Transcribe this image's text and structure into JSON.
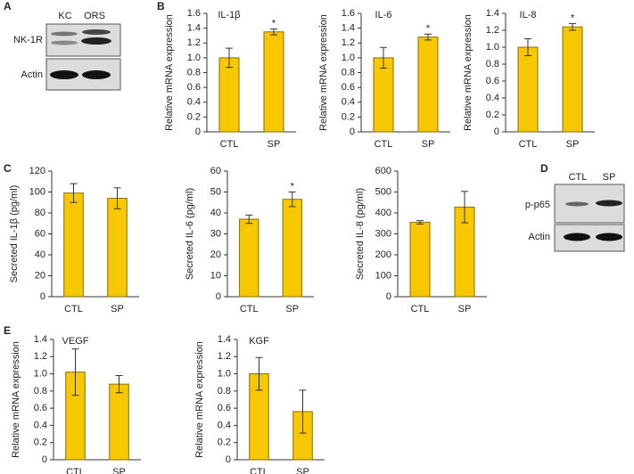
{
  "panel_labels": [
    "A",
    "B",
    "C",
    "D",
    "E"
  ],
  "blots": [
    {
      "columns": [
        "KC",
        "ORS"
      ],
      "rows": [
        "NK-1R",
        "Actin"
      ]
    },
    {
      "columns": [
        "CTL",
        "SP"
      ],
      "rows": [
        "p-p65",
        "Actin"
      ]
    }
  ],
  "chart_data": [
    {
      "type": "bar",
      "title": "IL-1β",
      "y_label": "Relative mRNA expression",
      "categories": [
        "CTL",
        "SP"
      ],
      "values": [
        1.0,
        1.35
      ],
      "errors": [
        0.13,
        0.04
      ],
      "color": "#f7c800",
      "ylim": [
        0,
        1.6
      ],
      "yticks": [
        0,
        0.2,
        0.4,
        0.6,
        0.8,
        {
          "value": 1,
          "label": "1.0"
        },
        1.2,
        1.4,
        1.6
      ],
      "annotations": [
        {
          "category": "SP",
          "text": "*"
        }
      ]
    },
    {
      "type": "bar",
      "title": "IL-6",
      "y_label": "Relative mRNA expression",
      "categories": [
        "CTL",
        "SP"
      ],
      "values": [
        1.0,
        1.28
      ],
      "errors": [
        0.14,
        0.04
      ],
      "color": "#f7c800",
      "ylim": [
        0,
        1.6
      ],
      "yticks": [
        0,
        0.2,
        0.4,
        0.6,
        0.8,
        {
          "value": 1,
          "label": "1.0"
        },
        1.2,
        1.4,
        1.6
      ],
      "annotations": [
        {
          "category": "SP",
          "text": "*"
        }
      ]
    },
    {
      "type": "bar",
      "title": "IL-8",
      "y_label": "Relative mRNA expression",
      "categories": [
        "CTL",
        "SP"
      ],
      "values": [
        1.0,
        1.24
      ],
      "errors": [
        0.1,
        0.04
      ],
      "color": "#f7c800",
      "ylim": [
        0,
        1.4
      ],
      "yticks": [
        0,
        0.2,
        0.4,
        0.6,
        0.8,
        {
          "value": 1,
          "label": "1.0"
        },
        1.2,
        1.4
      ],
      "annotations": [
        {
          "category": "SP",
          "text": "*"
        }
      ]
    },
    {
      "type": "bar",
      "y_label": "Secreted IL-1β (pg/ml)",
      "categories": [
        "CTL",
        "SP"
      ],
      "values": [
        99,
        94
      ],
      "errors": [
        9,
        10
      ],
      "color": "#f7c800",
      "ylim": [
        0,
        120
      ],
      "yticks": [
        0,
        20,
        40,
        60,
        80,
        100,
        120
      ]
    },
    {
      "type": "bar",
      "y_label": "Secreted IL-6 (pg/ml)",
      "categories": [
        "CTL",
        "SP"
      ],
      "values": [
        37,
        46.5
      ],
      "errors": [
        2,
        3.5
      ],
      "color": "#f7c800",
      "ylim": [
        0,
        60
      ],
      "yticks": [
        0,
        10,
        20,
        30,
        40,
        50,
        60
      ],
      "annotations": [
        {
          "category": "SP",
          "text": "*"
        }
      ]
    },
    {
      "type": "bar",
      "y_label": "Secreted IL-8 (pg/ml)",
      "categories": [
        "CTL",
        "SP"
      ],
      "values": [
        355,
        428
      ],
      "errors": [
        8,
        75
      ],
      "color": "#f7c800",
      "ylim": [
        0,
        600
      ],
      "yticks": [
        0,
        100,
        200,
        300,
        400,
        500,
        600
      ]
    },
    {
      "type": "bar",
      "title": "VEGF",
      "y_label": "Relative mRNA expression",
      "categories": [
        "CTL",
        "SP"
      ],
      "values": [
        1.02,
        0.88
      ],
      "errors": [
        0.27,
        0.1
      ],
      "color": "#f7c800",
      "ylim": [
        0,
        1.4
      ],
      "yticks": [
        0,
        0.2,
        0.4,
        0.6,
        0.8,
        {
          "value": 1,
          "label": "1.0"
        },
        1.2,
        1.4
      ]
    },
    {
      "type": "bar",
      "title": "KGF",
      "y_label": "Relative mRNA expression",
      "categories": [
        "CTL",
        "SP"
      ],
      "values": [
        1.0,
        0.56
      ],
      "errors": [
        0.19,
        0.25
      ],
      "color": "#f7c800",
      "ylim": [
        0,
        1.4
      ],
      "yticks": [
        0,
        0.2,
        0.4,
        0.6,
        0.8,
        {
          "value": 1,
          "label": "1.0"
        },
        1.2,
        1.4
      ]
    }
  ]
}
